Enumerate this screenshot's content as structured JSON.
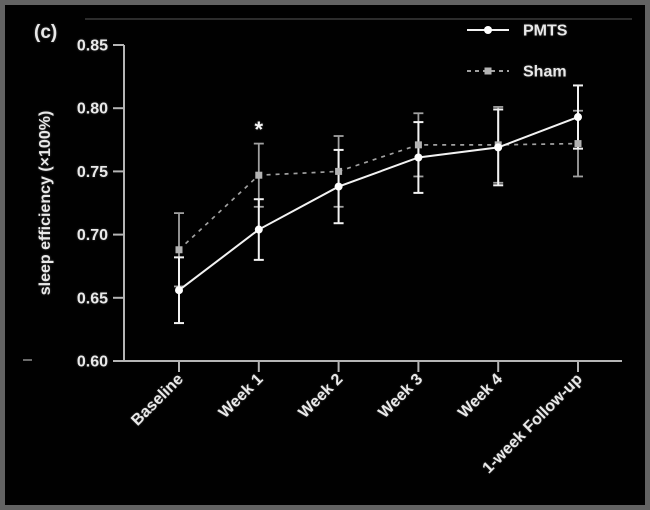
{
  "panel_label": "(c)",
  "colors": {
    "background": "#010101",
    "border": "#636363",
    "axis": "#b5b5b5",
    "text": "#e9e9e9",
    "pmts": "#f2f2f2",
    "sham": "#a0a0a0",
    "annotation": "#f5f5f5",
    "artifact": "#3a3a3a"
  },
  "chart_data": {
    "type": "line",
    "title": "",
    "xlabel": "",
    "ylabel": "sleep efficiency (×100%)",
    "ylim": [
      0.6,
      0.85
    ],
    "yticks": [
      0.6,
      0.65,
      0.7,
      0.75,
      0.8,
      0.85
    ],
    "ytick_format_decimals": 2,
    "grid": false,
    "legend_position": "top-right",
    "categories": [
      "Baseline",
      "Week 1",
      "Week 2",
      "Week 3",
      "Week 4",
      "1-week Follow-up"
    ],
    "series": [
      {
        "name": "Sham",
        "line_style": "dashed",
        "marker": "square",
        "color": "#a0a0a0",
        "marker_color": "#b3b3b3",
        "values": [
          0.688,
          0.747,
          0.75,
          0.771,
          0.771,
          0.772
        ],
        "err_low": [
          0.659,
          0.722,
          0.722,
          0.746,
          0.741,
          0.746
        ],
        "err_high": [
          0.717,
          0.772,
          0.778,
          0.796,
          0.801,
          0.798
        ]
      },
      {
        "name": "PMTS",
        "line_style": "solid",
        "marker": "circle",
        "color": "#f2f2f2",
        "marker_color": "#ffffff",
        "values": [
          0.656,
          0.704,
          0.738,
          0.761,
          0.769,
          0.793
        ],
        "err_low": [
          0.63,
          0.68,
          0.709,
          0.733,
          0.739,
          0.768
        ],
        "err_high": [
          0.682,
          0.728,
          0.767,
          0.789,
          0.799,
          0.818
        ]
      }
    ],
    "legend_order": [
      "PMTS",
      "Sham"
    ],
    "annotations": [
      {
        "text": "*",
        "category": "Week 1",
        "y": 0.786
      }
    ]
  }
}
